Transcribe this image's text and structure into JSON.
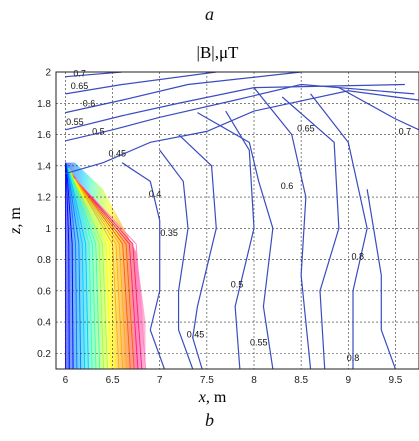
{
  "figure": {
    "label_top": "a",
    "label_bottom": "b"
  },
  "chart_data": {
    "type": "contour",
    "title": "|B|,μT",
    "xlabel": "x, m",
    "ylabel": "z, m",
    "xlim": [
      5.9,
      9.75
    ],
    "ylim": [
      0.1,
      2.0
    ],
    "xticks": [
      6,
      6.5,
      7,
      7.5,
      8,
      8.5,
      9,
      9.5
    ],
    "xtick_labels": [
      "6",
      "6.5",
      "7",
      "7.5",
      "8",
      "8.5",
      "9",
      "9.5"
    ],
    "yticks": [
      0.2,
      0.4,
      0.6,
      0.8,
      1.0,
      1.2,
      1.4,
      1.6,
      1.8,
      2.0
    ],
    "ytick_labels": [
      "0.2",
      "0.4",
      "0.6",
      "0.8",
      "1",
      "1.2",
      "1.4",
      "1.6",
      "1.8",
      "2"
    ],
    "grid": true,
    "line_color": "#3b4cc0",
    "contours": [
      {
        "level": "0.7",
        "points": [
          [
            6.0,
            1.97
          ],
          [
            6.6,
            2.0
          ]
        ],
        "label_at": [
          6.15,
          1.97
        ]
      },
      {
        "level": "0.65",
        "points": [
          [
            6.0,
            1.86
          ],
          [
            6.6,
            1.92
          ],
          [
            7.6,
            2.0
          ]
        ],
        "label_at": [
          6.15,
          1.89
        ]
      },
      {
        "level": "0.6",
        "points": [
          [
            6.0,
            1.74
          ],
          [
            6.6,
            1.82
          ],
          [
            7.3,
            1.92
          ],
          [
            8.5,
            2.0
          ]
        ],
        "label_at": [
          6.25,
          1.78
        ]
      },
      {
        "level": "0.55",
        "points": [
          [
            6.0,
            1.63
          ],
          [
            6.6,
            1.72
          ],
          [
            7.2,
            1.8
          ],
          [
            8.0,
            1.9
          ],
          [
            9.6,
            1.92
          ]
        ],
        "label_at": [
          6.1,
          1.66
        ]
      },
      {
        "level": "0.5",
        "points": [
          [
            6.0,
            1.56
          ],
          [
            6.5,
            1.63
          ],
          [
            7.0,
            1.71
          ],
          [
            7.8,
            1.82
          ],
          [
            8.5,
            1.92
          ],
          [
            9.7,
            1.86
          ]
        ],
        "label_at": [
          6.35,
          1.6
        ]
      },
      {
        "level": "0.45",
        "points": [
          [
            6.0,
            1.35
          ],
          [
            6.4,
            1.42
          ],
          [
            6.9,
            1.55
          ],
          [
            7.5,
            1.62
          ],
          [
            8.0,
            1.75
          ],
          [
            9.0,
            1.88
          ],
          [
            9.75,
            1.82
          ]
        ],
        "label_at": [
          6.55,
          1.46
        ]
      },
      {
        "level": "0.4",
        "points": [
          [
            6.6,
            1.42
          ],
          [
            6.9,
            1.3
          ],
          [
            7.0,
            1.05
          ],
          [
            7.0,
            0.6
          ],
          [
            6.9,
            0.35
          ],
          [
            7.05,
            0.1
          ]
        ],
        "label_at": [
          6.95,
          1.2
        ]
      },
      {
        "level": "0.35",
        "points": [
          [
            7.0,
            1.5
          ],
          [
            7.25,
            1.3
          ],
          [
            7.3,
            1.0
          ],
          [
            7.2,
            0.6
          ],
          [
            7.2,
            0.35
          ],
          [
            7.35,
            0.1
          ]
        ],
        "label_at": [
          7.1,
          0.95
        ]
      },
      {
        "level": "0.45",
        "points": [
          [
            7.2,
            1.6
          ],
          [
            7.55,
            1.4
          ],
          [
            7.6,
            1.0
          ],
          [
            7.4,
            0.5
          ],
          [
            7.35,
            0.3
          ],
          [
            7.45,
            0.1
          ]
        ],
        "label_at": [
          7.38,
          0.3
        ]
      },
      {
        "level": "0.5",
        "points": [
          [
            7.7,
            1.75
          ],
          [
            7.95,
            1.5
          ],
          [
            8.0,
            1.0
          ],
          [
            7.8,
            0.5
          ],
          [
            7.85,
            0.1
          ]
        ],
        "label_at": [
          7.82,
          0.62
        ]
      },
      {
        "level": "0.55",
        "points": [
          [
            7.4,
            1.74
          ],
          [
            7.95,
            1.55
          ],
          [
            8.05,
            1.3
          ],
          [
            8.2,
            1.0
          ],
          [
            8.1,
            0.5
          ],
          [
            8.2,
            0.1
          ]
        ],
        "label_at": [
          8.05,
          0.25
        ]
      },
      {
        "level": "0.6",
        "points": [
          [
            8.0,
            1.9
          ],
          [
            8.4,
            1.6
          ],
          [
            8.55,
            1.2
          ],
          [
            8.5,
            0.7
          ],
          [
            8.6,
            0.1
          ]
        ],
        "label_at": [
          8.35,
          1.25
        ]
      },
      {
        "level": "0.8",
        "points": [
          [
            8.6,
            1.86
          ],
          [
            9.0,
            1.55
          ],
          [
            9.2,
            1.0
          ],
          [
            9.05,
            0.6
          ],
          [
            9.05,
            0.1
          ]
        ],
        "label_at": [
          9.05,
          0.15
        ]
      },
      {
        "level": "0.65",
        "points": [
          [
            8.3,
            1.84
          ],
          [
            8.85,
            1.55
          ],
          [
            8.9,
            1.0
          ],
          [
            8.7,
            0.6
          ],
          [
            8.75,
            0.1
          ]
        ],
        "label_at": [
          8.55,
          1.62
        ]
      },
      {
        "level": "0.7",
        "points": [
          [
            8.9,
            1.9
          ],
          [
            9.5,
            1.7
          ],
          [
            9.75,
            1.63
          ]
        ],
        "label_at": [
          9.6,
          1.6
        ]
      },
      {
        "level": "0.8",
        "points": [
          [
            9.2,
            1.25
          ],
          [
            9.35,
            0.7
          ],
          [
            9.35,
            0.35
          ],
          [
            9.5,
            0.1
          ]
        ],
        "label_at": [
          9.1,
          0.8
        ]
      }
    ],
    "dense_region": {
      "description_colors": [
        "#0000ff",
        "#0080ff",
        "#00c8ff",
        "#40ffb0",
        "#a0ff40",
        "#ffff00",
        "#ffb000",
        "#ff6000",
        "#ff2080",
        "#ff80c0"
      ],
      "polygon": [
        [
          6.0,
          1.42
        ],
        [
          6.1,
          1.42
        ],
        [
          6.4,
          1.25
        ],
        [
          6.75,
          0.85
        ],
        [
          6.85,
          0.4
        ],
        [
          6.85,
          0.1
        ],
        [
          6.0,
          0.1
        ]
      ]
    }
  }
}
